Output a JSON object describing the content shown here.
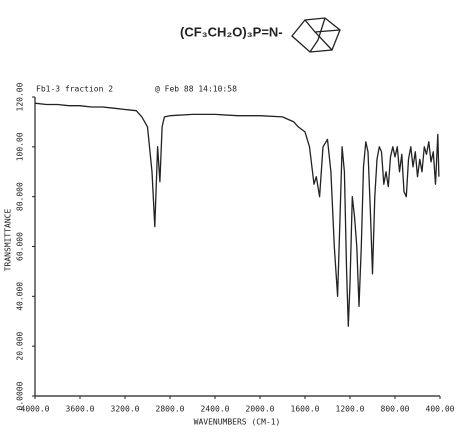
{
  "chart_data": {
    "type": "line",
    "title": "(CF₃CH₂O)₃P=N-",
    "header": [
      "Fb1-3 fraction 2",
      "@ Feb 88 14:10:58"
    ],
    "x_label": "WAVENUMBERS (CM-1)",
    "y_label": "TRANSMITTANCE",
    "color": "#222222",
    "x": [
      4000,
      3900,
      3800,
      3700,
      3600,
      3500,
      3400,
      3300,
      3200,
      3100,
      3050,
      3000,
      2960,
      2935,
      2910,
      2890,
      2870,
      2850,
      2800,
      2600,
      2400,
      2200,
      2000,
      1800,
      1700,
      1660,
      1600,
      1560,
      1520,
      1500,
      1470,
      1440,
      1400,
      1370,
      1340,
      1310,
      1290,
      1270,
      1250,
      1230,
      1215,
      1200,
      1180,
      1160,
      1140,
      1120,
      1100,
      1080,
      1060,
      1040,
      1020,
      1000,
      980,
      960,
      940,
      920,
      900,
      880,
      860,
      840,
      820,
      800,
      780,
      760,
      740,
      720,
      700,
      680,
      660,
      640,
      620,
      600,
      580,
      560,
      540,
      520,
      500,
      480,
      460,
      440,
      420,
      410
    ],
    "values": [
      117.5,
      117,
      117,
      116.5,
      116.5,
      116,
      116,
      115.5,
      115,
      114.5,
      112,
      108,
      90,
      68,
      100,
      86,
      108,
      112,
      112.5,
      113,
      113,
      112.5,
      112.5,
      112,
      110,
      108,
      106,
      100,
      85,
      88,
      80,
      100,
      103,
      90,
      60,
      40,
      70,
      100,
      90,
      50,
      28,
      45,
      80,
      72,
      60,
      36,
      60,
      92,
      102,
      98,
      75,
      49,
      80,
      95,
      100,
      98,
      85,
      90,
      84,
      96,
      100,
      96,
      100,
      90,
      97,
      82,
      80,
      95,
      100,
      92,
      98,
      88,
      95,
      90,
      100,
      97,
      102,
      94,
      98,
      85,
      105,
      88
    ],
    "xlim": [
      4000,
      400
    ],
    "xticks": [
      {
        "value": 4000,
        "label": "4000.0"
      },
      {
        "value": 3600,
        "label": "3600.0"
      },
      {
        "value": 3200,
        "label": "3200.0"
      },
      {
        "value": 2800,
        "label": "2800.0"
      },
      {
        "value": 2400,
        "label": "2400.0"
      },
      {
        "value": 2000,
        "label": "2000.0"
      },
      {
        "value": 1600,
        "label": "1600.0"
      },
      {
        "value": 1200,
        "label": "1200.0"
      },
      {
        "value": 800,
        "label": "800.00"
      },
      {
        "value": 400,
        "label": "400.00"
      }
    ],
    "ylim": [
      0,
      120
    ],
    "yticks": [
      {
        "value": 0,
        "label": "0.0000"
      },
      {
        "value": 20,
        "label": "20.000"
      },
      {
        "value": 40,
        "label": "40.000"
      },
      {
        "value": 60,
        "label": "60.000"
      },
      {
        "value": 80,
        "label": "80.000"
      },
      {
        "value": 100,
        "label": "100.00"
      },
      {
        "value": 120,
        "label": "120.00"
      }
    ],
    "grid": false
  }
}
